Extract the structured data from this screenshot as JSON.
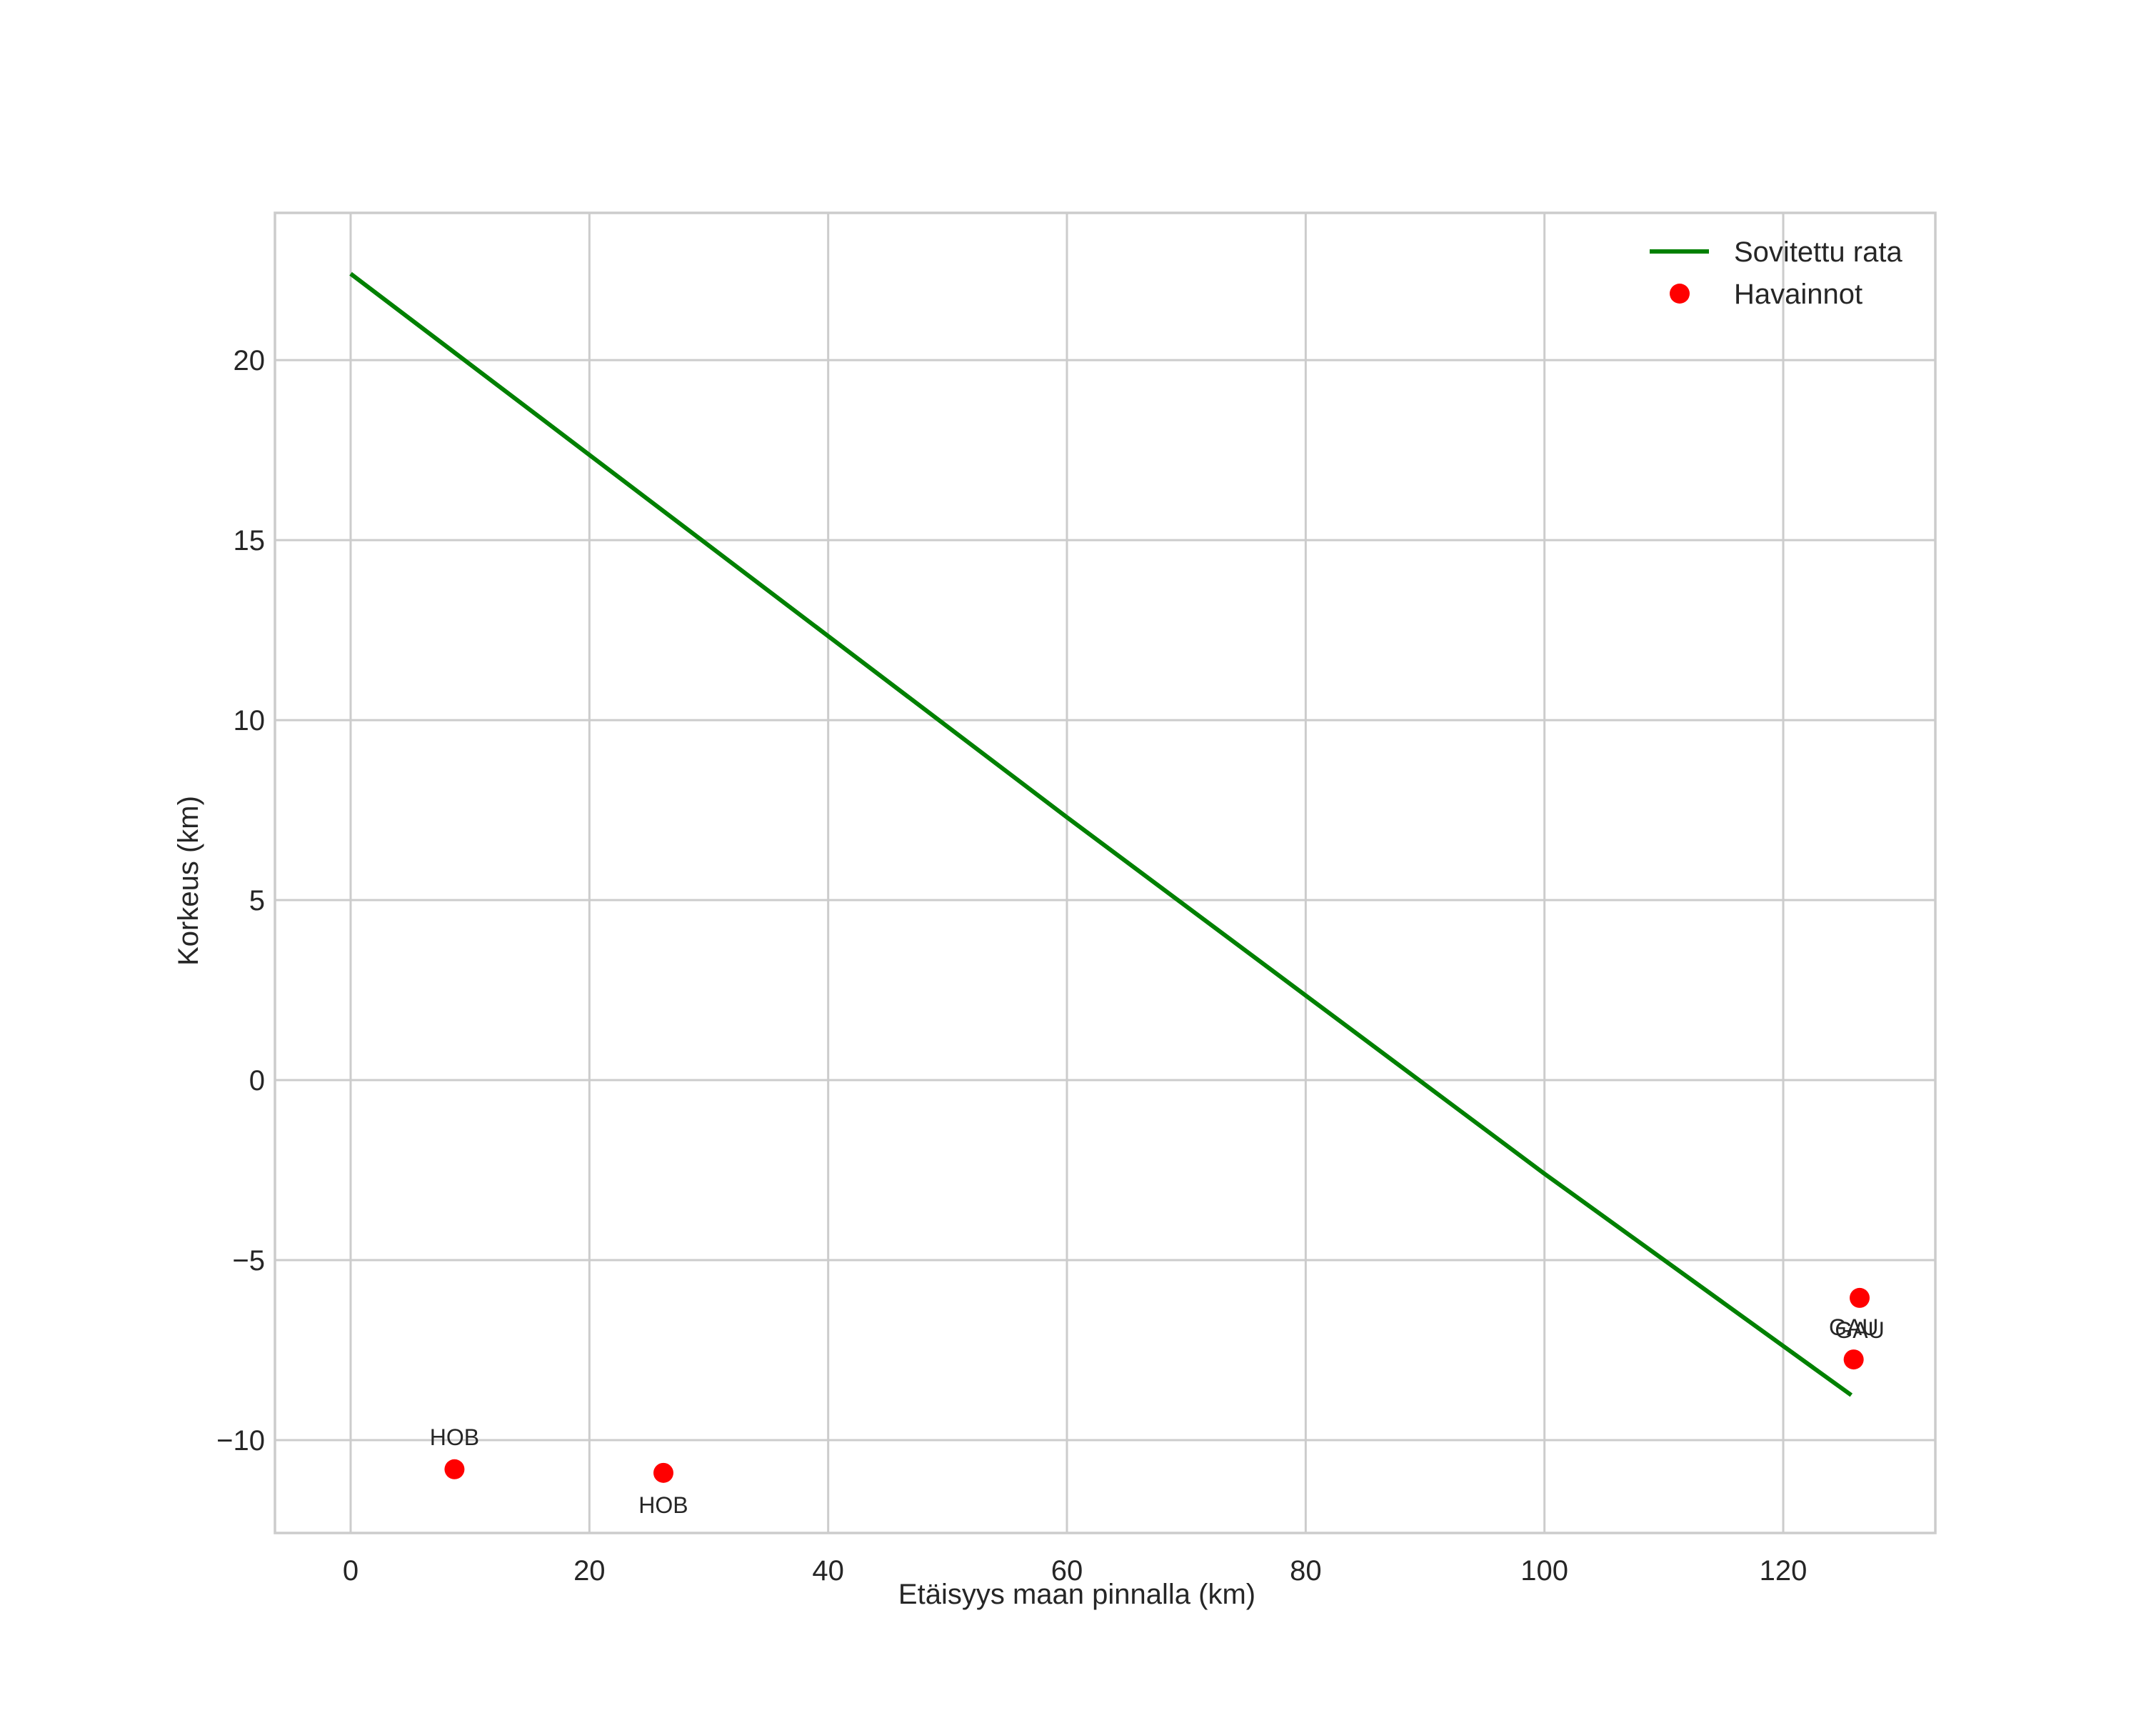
{
  "chart_data": {
    "type": "line+scatter",
    "title": "",
    "xlabel": "Etäisyys maan pinnalla (km)",
    "ylabel": "Korkeus (km)",
    "xlim": [
      -6.34,
      132.74
    ],
    "ylim": [
      -12.58,
      24.09
    ],
    "xticks": [
      0,
      20,
      40,
      60,
      80,
      100,
      120
    ],
    "xtick_labels": [
      "0",
      "20",
      "40",
      "60",
      "80",
      "100",
      "120"
    ],
    "yticks": [
      -10,
      -5,
      0,
      5,
      10,
      15,
      20
    ],
    "ytick_labels": [
      "−10",
      "−5",
      "0",
      "5",
      "10",
      "15",
      "20"
    ],
    "grid": true,
    "legend_position": "upper right",
    "series": [
      {
        "name": "Sovitettu rata",
        "kind": "line",
        "color": "#008000",
        "x": [
          0,
          60,
          100,
          125.7
        ],
        "y": [
          22.4,
          7.3,
          -2.6,
          -8.75
        ]
      },
      {
        "name": "Havainnot",
        "kind": "scatter",
        "color": "#ff0000",
        "points": [
          {
            "x": 8.7,
            "y": -10.81,
            "label": "HOB",
            "label_pos": "above"
          },
          {
            "x": 26.2,
            "y": -10.91,
            "label": "HOB",
            "label_pos": "below"
          },
          {
            "x": 126.4,
            "y": -6.05,
            "label": "GAU",
            "label_pos": "below"
          },
          {
            "x": 125.9,
            "y": -7.76,
            "label": "GAU",
            "label_pos": "above"
          }
        ]
      }
    ]
  },
  "legend": {
    "items": [
      {
        "label": "Sovitettu rata",
        "type": "line",
        "color": "#008000"
      },
      {
        "label": "Havainnot",
        "type": "marker",
        "color": "#ff0000"
      }
    ]
  }
}
